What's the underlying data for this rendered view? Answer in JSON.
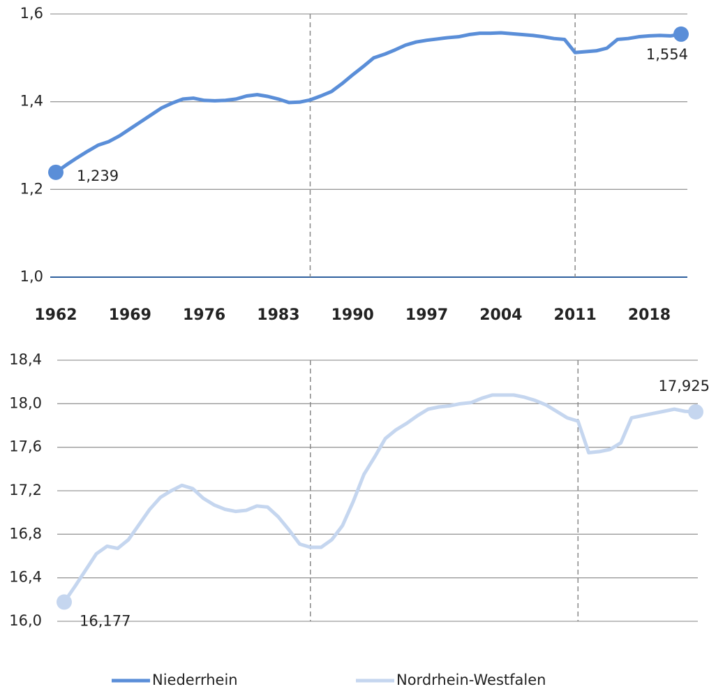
{
  "chart_data": [
    {
      "type": "line",
      "x": [
        1962,
        1963,
        1964,
        1965,
        1966,
        1967,
        1968,
        1969,
        1970,
        1971,
        1972,
        1973,
        1974,
        1975,
        1976,
        1977,
        1978,
        1979,
        1980,
        1981,
        1982,
        1983,
        1984,
        1985,
        1986,
        1987,
        1988,
        1989,
        1990,
        1991,
        1992,
        1993,
        1994,
        1995,
        1996,
        1997,
        1998,
        1999,
        2000,
        2001,
        2002,
        2003,
        2004,
        2005,
        2006,
        2007,
        2008,
        2009,
        2010,
        2011,
        2012,
        2013,
        2014,
        2015,
        2016,
        2017,
        2018,
        2019,
        2020,
        2021
      ],
      "series": [
        {
          "name": "Niederrhein",
          "color": "#5a8ed8",
          "values": [
            1.239,
            1.256,
            1.272,
            1.287,
            1.301,
            1.309,
            1.322,
            1.338,
            1.354,
            1.37,
            1.386,
            1.397,
            1.406,
            1.408,
            1.403,
            1.402,
            1.403,
            1.406,
            1.413,
            1.416,
            1.412,
            1.406,
            1.398,
            1.399,
            1.404,
            1.413,
            1.423,
            1.441,
            1.461,
            1.48,
            1.5,
            1.508,
            1.518,
            1.529,
            1.536,
            1.54,
            1.543,
            1.546,
            1.548,
            1.553,
            1.556,
            1.556,
            1.557,
            1.555,
            1.553,
            1.551,
            1.548,
            1.544,
            1.542,
            1.512,
            1.514,
            1.516,
            1.522,
            1.542,
            1.544,
            1.548,
            1.55,
            1.551,
            1.55,
            1.554
          ],
          "value_labels": [
            "1,239",
            null,
            null,
            null,
            null,
            null,
            null,
            null,
            null,
            null,
            null,
            null,
            null,
            null,
            null,
            null,
            null,
            null,
            null,
            null,
            null,
            null,
            null,
            null,
            null,
            null,
            null,
            null,
            null,
            null,
            null,
            null,
            null,
            null,
            null,
            null,
            null,
            null,
            null,
            null,
            null,
            null,
            null,
            null,
            null,
            null,
            null,
            null,
            null,
            null,
            null,
            null,
            null,
            null,
            null,
            null,
            null,
            null,
            null,
            "1,554"
          ]
        }
      ],
      "xlim": [
        1962,
        2021
      ],
      "xticks": [
        1962,
        1969,
        1976,
        1983,
        1990,
        1997,
        2004,
        2011,
        2018
      ],
      "ylim": [
        1.0,
        1.6
      ],
      "yticks": [
        {
          "value": 1.0,
          "label": "1,0"
        },
        {
          "value": 1.2,
          "label": "1,2"
        },
        {
          "value": 1.4,
          "label": "1,4"
        },
        {
          "value": 1.6,
          "label": "1,6"
        }
      ],
      "vlines": [
        1986,
        2011
      ],
      "grid": true
    },
    {
      "type": "line",
      "x": [
        1962,
        1963,
        1964,
        1965,
        1966,
        1967,
        1968,
        1969,
        1970,
        1971,
        1972,
        1973,
        1974,
        1975,
        1976,
        1977,
        1978,
        1979,
        1980,
        1981,
        1982,
        1983,
        1984,
        1985,
        1986,
        1987,
        1988,
        1989,
        1990,
        1991,
        1992,
        1993,
        1994,
        1995,
        1996,
        1997,
        1998,
        1999,
        2000,
        2001,
        2002,
        2003,
        2004,
        2005,
        2006,
        2007,
        2008,
        2009,
        2010,
        2011,
        2012,
        2013,
        2014,
        2015,
        2016,
        2017,
        2018,
        2019,
        2020,
        2021
      ],
      "series": [
        {
          "name": "Nordrhein-Westfalen",
          "color": "#c5d6ef",
          "values": [
            16.177,
            16.32,
            16.47,
            16.62,
            16.69,
            16.67,
            16.75,
            16.89,
            17.03,
            17.14,
            17.2,
            17.25,
            17.22,
            17.13,
            17.07,
            17.03,
            17.01,
            17.02,
            17.06,
            17.05,
            16.96,
            16.84,
            16.71,
            16.68,
            16.68,
            16.75,
            16.88,
            17.1,
            17.35,
            17.51,
            17.68,
            17.76,
            17.82,
            17.89,
            17.95,
            17.97,
            17.98,
            18.0,
            18.01,
            18.05,
            18.08,
            18.08,
            18.08,
            18.06,
            18.03,
            17.99,
            17.93,
            17.87,
            17.84,
            17.55,
            17.56,
            17.58,
            17.64,
            17.87,
            17.89,
            17.91,
            17.93,
            17.95,
            17.93,
            17.925
          ],
          "value_labels": [
            "16,177",
            null,
            null,
            null,
            null,
            null,
            null,
            null,
            null,
            null,
            null,
            null,
            null,
            null,
            null,
            null,
            null,
            null,
            null,
            null,
            null,
            null,
            null,
            null,
            null,
            null,
            null,
            null,
            null,
            null,
            null,
            null,
            null,
            null,
            null,
            null,
            null,
            null,
            null,
            null,
            null,
            null,
            null,
            null,
            null,
            null,
            null,
            null,
            null,
            null,
            null,
            null,
            null,
            null,
            null,
            null,
            null,
            null,
            null,
            "17,925"
          ]
        }
      ],
      "xlim": [
        1962,
        2021
      ],
      "ylim": [
        16.0,
        18.4
      ],
      "yticks": [
        {
          "value": 16.0,
          "label": "16,0"
        },
        {
          "value": 16.4,
          "label": "16,4"
        },
        {
          "value": 16.8,
          "label": "16,8"
        },
        {
          "value": 17.2,
          "label": "17,2"
        },
        {
          "value": 17.6,
          "label": "17,6"
        },
        {
          "value": 18.0,
          "label": "18,0"
        },
        {
          "value": 18.4,
          "label": "18,4"
        }
      ],
      "vlines": [
        1985,
        2010
      ],
      "grid": true
    }
  ]
}
